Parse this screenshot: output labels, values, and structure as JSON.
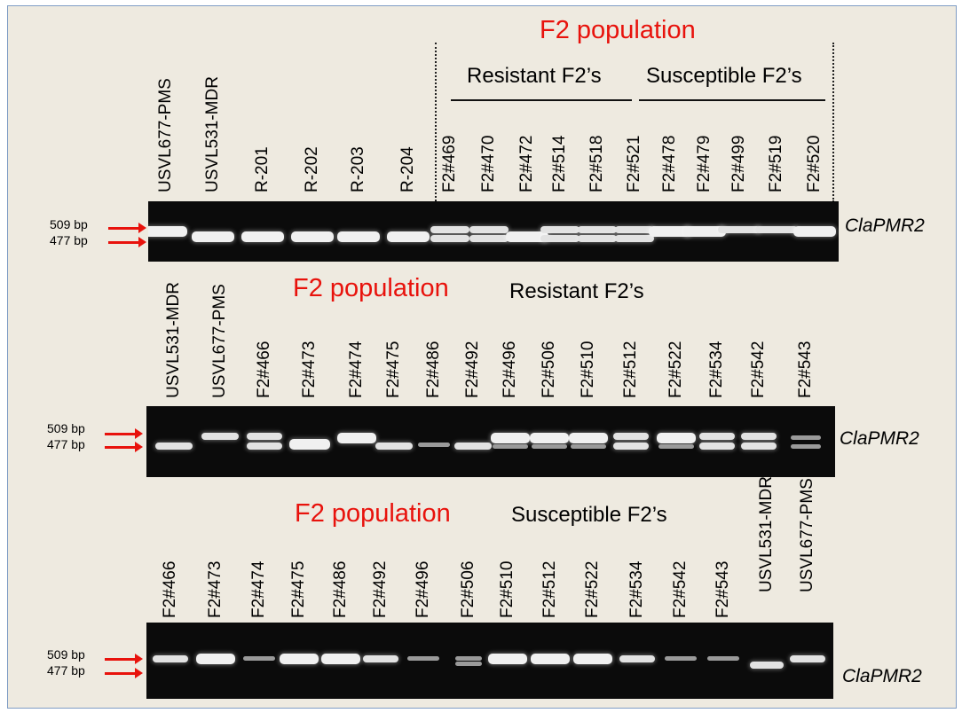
{
  "panel1": {
    "heading": "F2 population",
    "group_resistant": "Resistant F2’s",
    "group_susceptible": "Susceptible F2’s",
    "lanes": [
      "USVL677-PMS",
      "USVL531-MDR",
      "R-201",
      "R-202",
      "R-203",
      "R-204",
      "F2#469",
      "F2#470",
      "F2#472",
      "F2#514",
      "F2#518",
      "F2#521",
      "F2#478",
      "F2#479",
      "F2#499",
      "F2#519",
      "F2#520"
    ],
    "marker_top": "509 bp",
    "marker_bottom": "477 bp",
    "gene": "ClaPMR2"
  },
  "panel2": {
    "heading": "F2 population",
    "group": "Resistant F2’s",
    "lanes": [
      "USVL531-MDR",
      "USVL677-PMS",
      "F2#466",
      "F2#473",
      "F2#474",
      "F2#475",
      "F2#486",
      "F2#492",
      "F2#496",
      "F2#506",
      "F2#510",
      "F2#512",
      "F2#522",
      "F2#534",
      "F2#542",
      "F2#543"
    ],
    "marker_top": "509 bp",
    "marker_bottom": "477 bp",
    "gene": "ClaPMR2"
  },
  "panel3": {
    "heading": "F2 population",
    "group": "Susceptible F2’s",
    "lanes": [
      "F2#466",
      "F2#473",
      "F2#474",
      "F2#475",
      "F2#486",
      "F2#492",
      "F2#496",
      "F2#506",
      "F2#510",
      "F2#512",
      "F2#522",
      "F2#534",
      "F2#542",
      "F2#543",
      "USVL531-MDR",
      "USVL677-PMS"
    ],
    "marker_top": "509 bp",
    "marker_bottom": "477 bp",
    "gene": "ClaPMR2"
  },
  "colors": {
    "heading": "#e8120c",
    "arrow": "#e8120c",
    "gel": "#0b0b0b",
    "band": "#e2e2e2",
    "frame_border": "#7f9cc4",
    "frame_background": "#eeeae0"
  }
}
